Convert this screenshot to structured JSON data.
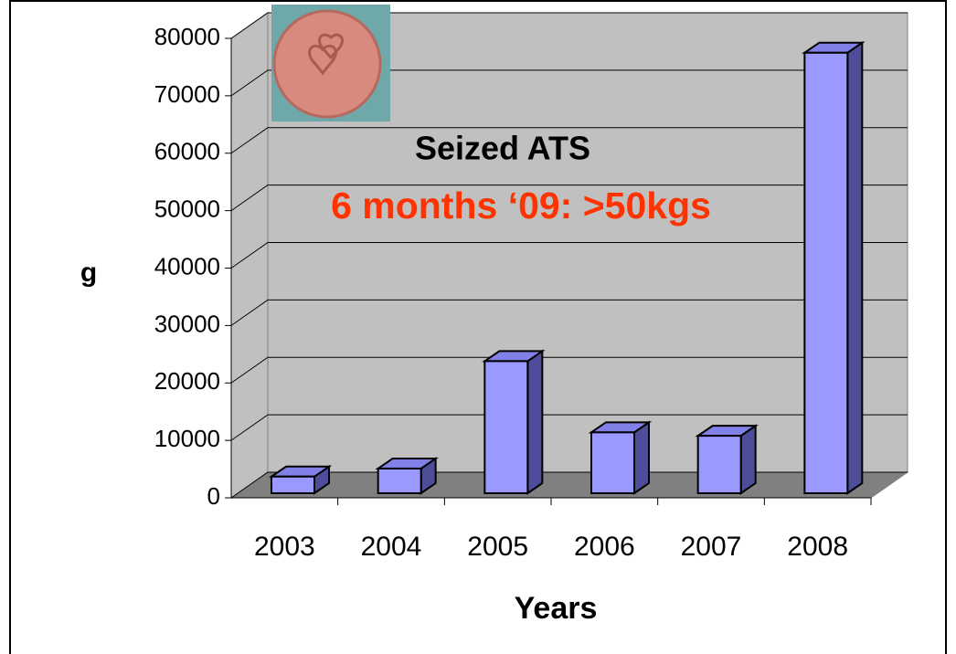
{
  "chart_data": {
    "type": "bar3d",
    "title": "Seized ATS",
    "subtitle": "6 months ‘09: >50kgs",
    "y_label": "g",
    "x_label": "Years",
    "categories": [
      "2003",
      "2004",
      "2005",
      "2006",
      "2007",
      "2008"
    ],
    "values": [
      2900,
      4300,
      23000,
      10600,
      10000,
      76700
    ],
    "color": "#9999ff",
    "ylim": [
      0,
      80000
    ],
    "yticks": [
      0,
      10000,
      20000,
      30000,
      40000,
      50000,
      60000,
      70000,
      80000
    ],
    "grid": true
  }
}
